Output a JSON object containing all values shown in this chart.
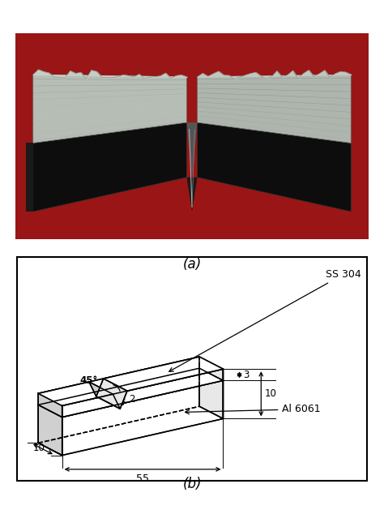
{
  "title_a": "(a)",
  "title_b": "(b)",
  "dim_length": "55",
  "dim_width_bottom": "10",
  "dim_height_total": "10",
  "dim_height_ss": "3",
  "dim_notch_depth": "2",
  "dim_angle": "45°",
  "label_ss": "SS 304",
  "label_al": "Al 6061",
  "bg_color": "#ffffff",
  "line_color": "#000000",
  "photo_bg": "#a01010",
  "specimen_gray": "#b8c0b8",
  "specimen_dark": "#111111",
  "notch_gray": "#808080",
  "face_white": "#ffffff",
  "face_light": "#e8e8e8",
  "face_mid": "#d0d0d0"
}
